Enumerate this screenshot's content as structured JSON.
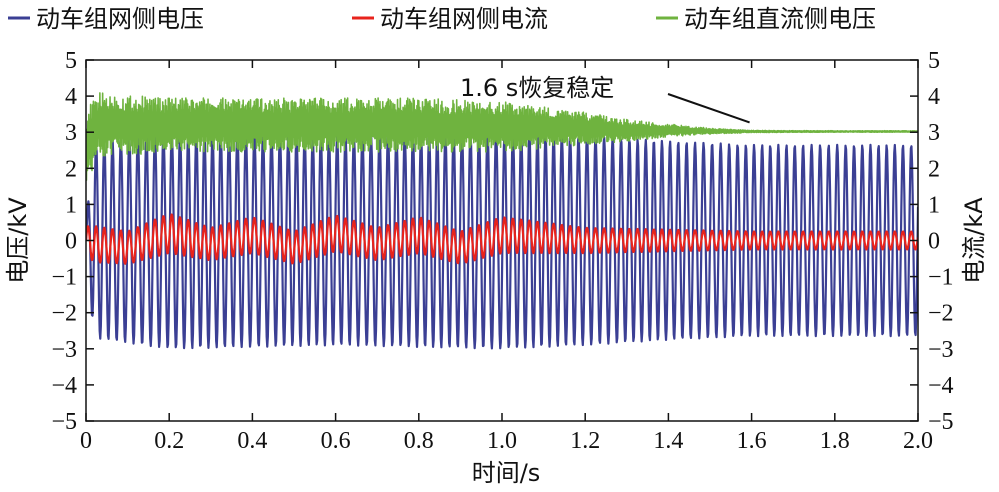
{
  "chart_data": {
    "type": "line",
    "title": "",
    "xlabel": "时间/s",
    "ylabel_left": "电压/kV",
    "ylabel_right": "电流/kA",
    "xlim": [
      0,
      2.0
    ],
    "ylim_left": [
      -5,
      5
    ],
    "ylim_right": [
      -5,
      5
    ],
    "x_ticks": [
      "0",
      "0.2",
      "0.4",
      "0.6",
      "0.8",
      "1.0",
      "1.2",
      "1.4",
      "1.6",
      "1.8",
      "2.0"
    ],
    "y_ticks_left": [
      "5",
      "4",
      "3",
      "2",
      "1",
      "0",
      "−1",
      "−2",
      "−3",
      "−4",
      "−5"
    ],
    "y_ticks_right": [
      "5",
      "4",
      "3",
      "2",
      "1",
      "0",
      "−1",
      "−2",
      "−3",
      "−4",
      "−5"
    ],
    "grid": false,
    "legend_position": "top",
    "annotation": {
      "text": "1.6 s恢复稳定",
      "x": 1.6,
      "y": 3.05
    },
    "series": [
      {
        "name": "动车组网侧电压",
        "color": "#3b3f94",
        "axis": "left",
        "kind": "ac",
        "envelope_x": [
          0.0,
          0.02,
          0.2,
          0.4,
          0.6,
          0.8,
          1.0,
          1.2,
          1.4,
          1.6,
          1.8,
          2.0
        ],
        "amplitude": [
          0.5,
          2.7,
          3.0,
          2.95,
          2.9,
          2.95,
          3.0,
          2.9,
          2.75,
          2.65,
          2.65,
          2.65
        ],
        "offset": [
          0,
          0,
          0,
          0,
          0,
          0,
          0,
          0,
          0,
          0,
          0,
          0
        ]
      },
      {
        "name": "动车组网侧电流",
        "color": "#e8231c",
        "axis": "right",
        "kind": "ac",
        "envelope_x": [
          0.0,
          0.02,
          0.1,
          0.2,
          0.3,
          0.4,
          0.5,
          0.6,
          0.7,
          0.8,
          0.9,
          1.0,
          1.2,
          1.4,
          1.6,
          1.8,
          2.0
        ],
        "amplitude": [
          0.4,
          0.5,
          0.45,
          0.55,
          0.45,
          0.5,
          0.45,
          0.5,
          0.45,
          0.5,
          0.45,
          0.5,
          0.35,
          0.3,
          0.25,
          0.25,
          0.25
        ],
        "offset": [
          0.0,
          -0.1,
          -0.2,
          0.2,
          -0.1,
          0.15,
          -0.2,
          0.2,
          -0.1,
          0.15,
          -0.2,
          0.15,
          0.0,
          0.0,
          0.0,
          0.0,
          0.0
        ]
      },
      {
        "name": "动车组直流侧电压",
        "color": "#6fb33f",
        "axis": "left",
        "kind": "dc",
        "envelope_x": [
          0.0,
          0.03,
          0.2,
          0.4,
          0.6,
          0.8,
          1.0,
          1.2,
          1.3,
          1.4,
          1.5,
          1.6,
          1.8,
          2.0
        ],
        "amplitude": [
          1.0,
          0.9,
          0.75,
          0.75,
          0.75,
          0.75,
          0.7,
          0.45,
          0.3,
          0.18,
          0.08,
          0.03,
          0.02,
          0.02
        ],
        "offset": [
          2.6,
          3.2,
          3.2,
          3.2,
          3.2,
          3.2,
          3.15,
          3.1,
          3.05,
          3.05,
          3.03,
          3.02,
          3.02,
          3.02
        ]
      }
    ]
  }
}
